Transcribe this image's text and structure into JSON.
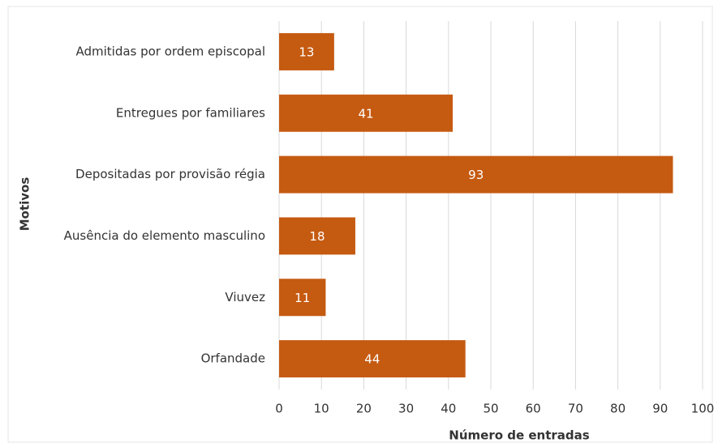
{
  "chart_data": {
    "type": "barh",
    "categories": [
      "Admitidas por ordem episcopal",
      "Entregues por familiares",
      "Depositadas por provisão régia",
      "Ausência do elemento masculino",
      "Viuvez",
      "Orfandade"
    ],
    "values": [
      13,
      41,
      93,
      18,
      11,
      44
    ],
    "color": "#c55a11",
    "xlabel": "Número de entradas",
    "ylabel": "Motivos",
    "xlim": [
      0,
      100
    ],
    "xticks": [
      0,
      10,
      20,
      30,
      40,
      50,
      60,
      70,
      80,
      90,
      100
    ],
    "grid": true
  }
}
